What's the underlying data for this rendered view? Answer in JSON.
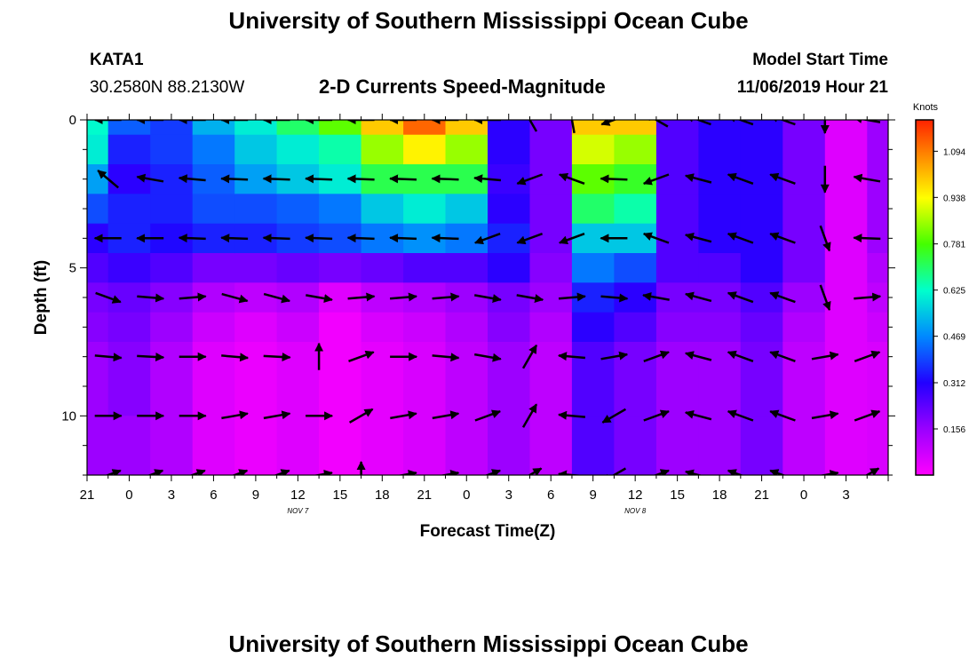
{
  "page": {
    "title_top": "University of Southern Mississippi Ocean Cube",
    "title_bottom": "University of Southern Mississippi Ocean Cube",
    "station_id": "KATA1",
    "station_coords": "30.2580N 88.2130W",
    "plot_title": "2-D Currents Speed-Magnitude",
    "model_start_label": "Model Start Time",
    "model_start_value": "11/06/2019 Hour 21"
  },
  "chart_data": {
    "type": "heatmap",
    "title": "2-D Currents Speed-Magnitude",
    "xlabel": "Forecast Time(Z)",
    "ylabel": "Depth (ft)",
    "ylim": [
      12,
      0
    ],
    "y_ticks": [
      0,
      5,
      10
    ],
    "x_hours": [
      -3,
      54
    ],
    "x_tick_labels": [
      "21",
      "0",
      "3",
      "6",
      "9",
      "12",
      "15",
      "18",
      "21",
      "0",
      "3",
      "6",
      "9",
      "12",
      "15",
      "18",
      "21",
      "0",
      "3"
    ],
    "x_date_labels": [
      {
        "text": "NOV 7",
        "hour": 12
      },
      {
        "text": "NOV 8",
        "hour": 36
      }
    ],
    "colorbar": {
      "unit": "Knots",
      "tick_labels": [
        "1.094",
        "0.938",
        "0.781",
        "0.625",
        "0.469",
        "0.312",
        "0.156"
      ],
      "tick_values": [
        1.094,
        0.938,
        0.781,
        0.625,
        0.469,
        0.312,
        0.156
      ],
      "range": [
        0,
        1.2
      ]
    },
    "depths": [
      0,
      2,
      4,
      6,
      8,
      10,
      12
    ],
    "times": [
      -3,
      0,
      3,
      6,
      9,
      12,
      15,
      18,
      21,
      24,
      27,
      30,
      33,
      36,
      39,
      42,
      45,
      48,
      51,
      54
    ],
    "speed_knots": [
      [
        0.62,
        0.42,
        0.38,
        0.52,
        0.6,
        0.7,
        0.8,
        1.0,
        1.12,
        1.0,
        0.3,
        0.2,
        1.0,
        1.0,
        0.25,
        0.3,
        0.3,
        0.2,
        0.05,
        0.15
      ],
      [
        0.6,
        0.35,
        0.38,
        0.45,
        0.55,
        0.6,
        0.65,
        0.85,
        0.95,
        0.85,
        0.3,
        0.2,
        0.9,
        0.85,
        0.25,
        0.3,
        0.3,
        0.2,
        0.05,
        0.15
      ],
      [
        0.5,
        0.3,
        0.35,
        0.42,
        0.5,
        0.55,
        0.6,
        0.72,
        0.72,
        0.72,
        0.28,
        0.2,
        0.8,
        0.75,
        0.25,
        0.3,
        0.3,
        0.2,
        0.05,
        0.15
      ],
      [
        0.4,
        0.35,
        0.35,
        0.4,
        0.4,
        0.42,
        0.45,
        0.55,
        0.6,
        0.55,
        0.3,
        0.2,
        0.7,
        0.65,
        0.25,
        0.3,
        0.3,
        0.2,
        0.05,
        0.15
      ],
      [
        0.3,
        0.35,
        0.32,
        0.35,
        0.35,
        0.38,
        0.4,
        0.45,
        0.48,
        0.45,
        0.35,
        0.2,
        0.55,
        0.55,
        0.25,
        0.3,
        0.3,
        0.2,
        0.05,
        0.15
      ],
      [
        0.25,
        0.28,
        0.25,
        0.2,
        0.2,
        0.22,
        0.2,
        0.22,
        0.25,
        0.25,
        0.3,
        0.18,
        0.45,
        0.4,
        0.25,
        0.25,
        0.3,
        0.2,
        0.05,
        0.12
      ],
      [
        0.2,
        0.22,
        0.18,
        0.12,
        0.1,
        0.12,
        0.05,
        0.1,
        0.12,
        0.15,
        0.2,
        0.15,
        0.35,
        0.3,
        0.2,
        0.2,
        0.25,
        0.15,
        0.05,
        0.1
      ],
      [
        0.18,
        0.2,
        0.15,
        0.08,
        0.05,
        0.08,
        0.02,
        0.06,
        0.08,
        0.12,
        0.18,
        0.12,
        0.3,
        0.25,
        0.18,
        0.18,
        0.22,
        0.12,
        0.05,
        0.08
      ],
      [
        0.15,
        0.18,
        0.12,
        0.05,
        0.03,
        0.05,
        0.02,
        0.04,
        0.06,
        0.1,
        0.15,
        0.1,
        0.25,
        0.2,
        0.15,
        0.15,
        0.2,
        0.1,
        0.05,
        0.06
      ],
      [
        0.15,
        0.15,
        0.12,
        0.05,
        0.03,
        0.05,
        0.02,
        0.04,
        0.06,
        0.1,
        0.15,
        0.1,
        0.25,
        0.2,
        0.15,
        0.15,
        0.2,
        0.1,
        0.05,
        0.06
      ]
    ],
    "speed_depths": [
      0,
      1,
      2,
      3,
      4,
      5,
      6,
      7,
      8,
      12
    ],
    "vector_depths": [
      0,
      2,
      4,
      6,
      8,
      10,
      12
    ],
    "vector_times": [
      -1.5,
      1.5,
      4.5,
      7.5,
      10.5,
      13.5,
      16.5,
      19.5,
      22.5,
      25.5,
      28.5,
      31.5,
      34.5,
      37.5,
      40.5,
      43.5,
      46.5,
      49.5,
      52.5
    ],
    "vector_dir_deg": [
      [
        180,
        180,
        180,
        180,
        180,
        180,
        180,
        180,
        180,
        180,
        120,
        100,
        200,
        150,
        160,
        160,
        160,
        270,
        170
      ],
      [
        140,
        170,
        175,
        178,
        178,
        178,
        178,
        178,
        178,
        175,
        200,
        160,
        178,
        200,
        165,
        160,
        160,
        270,
        170
      ],
      [
        180,
        180,
        178,
        178,
        178,
        178,
        178,
        178,
        178,
        200,
        200,
        200,
        180,
        160,
        165,
        160,
        160,
        290,
        178
      ],
      [
        340,
        355,
        5,
        345,
        345,
        350,
        5,
        5,
        5,
        350,
        350,
        5,
        355,
        170,
        165,
        160,
        160,
        290,
        5
      ],
      [
        355,
        357,
        0,
        355,
        357,
        90,
        20,
        0,
        355,
        350,
        60,
        175,
        10,
        20,
        165,
        160,
        160,
        10,
        20
      ],
      [
        0,
        0,
        0,
        10,
        10,
        0,
        30,
        10,
        10,
        20,
        60,
        175,
        210,
        20,
        165,
        160,
        160,
        10,
        20
      ],
      [
        20,
        20,
        20,
        20,
        20,
        10,
        90,
        10,
        10,
        20,
        30,
        175,
        210,
        20,
        165,
        160,
        160,
        10,
        30
      ]
    ]
  }
}
